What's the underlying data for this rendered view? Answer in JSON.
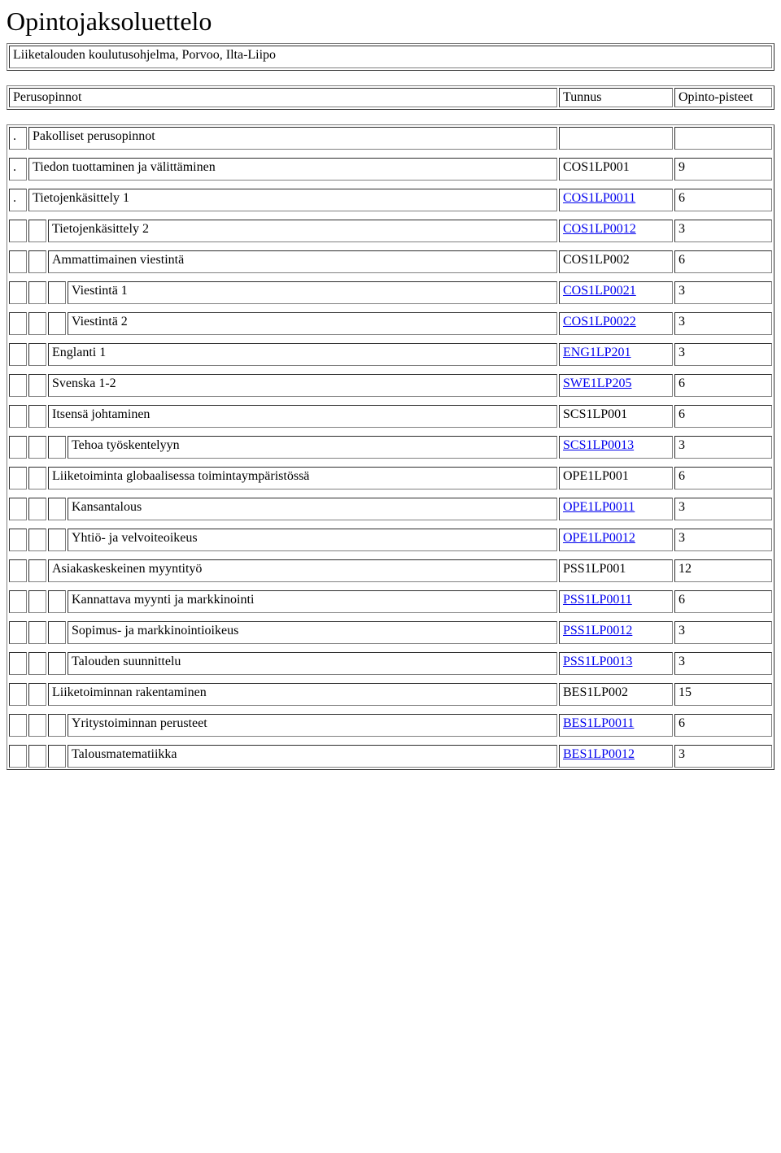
{
  "page": {
    "title": "Opintojaksoluettelo",
    "subtitle": "Liiketalouden koulutusohjelma, Porvoo, Ilta-Liipo"
  },
  "header": {
    "col1": "Perusopinnot",
    "col2": "Tunnus",
    "col3": "Opinto-pisteet"
  },
  "rows": [
    {
      "indent": 0,
      "label": "Pakolliset perusopinnot",
      "dot": ".",
      "code": "",
      "pts": "",
      "link": false
    },
    {
      "indent": 0,
      "label": "Tiedon tuottaminen ja välittäminen",
      "dot": ".",
      "code": "COS1LP001",
      "pts": "9",
      "link": false
    },
    {
      "indent": 0,
      "label": "Tietojenkäsittely 1",
      "dot": ".",
      "code": "COS1LP0011",
      "pts": "6",
      "link": true
    },
    {
      "indent": 1,
      "label": "Tietojenkäsittely 2",
      "dot": "",
      "code": "COS1LP0012",
      "pts": "3",
      "link": true
    },
    {
      "indent": 1,
      "label": "Ammattimainen viestintä",
      "dot": "",
      "code": "COS1LP002",
      "pts": "6",
      "link": false
    },
    {
      "indent": 2,
      "label": "Viestintä 1",
      "dot": "",
      "code": "COS1LP0021",
      "pts": "3",
      "link": true
    },
    {
      "indent": 2,
      "label": "Viestintä 2",
      "dot": "",
      "code": "COS1LP0022",
      "pts": "3",
      "link": true
    },
    {
      "indent": 1,
      "label": "Englanti 1",
      "dot": "",
      "code": "ENG1LP201",
      "pts": "3",
      "link": true
    },
    {
      "indent": 1,
      "label": "Svenska 1-2",
      "dot": "",
      "code": "SWE1LP205",
      "pts": "6",
      "link": true
    },
    {
      "indent": 1,
      "label": "Itsensä johtaminen",
      "dot": "",
      "code": "SCS1LP001",
      "pts": "6",
      "link": false
    },
    {
      "indent": 2,
      "label": "Tehoa työskentelyyn",
      "dot": "",
      "code": "SCS1LP0013",
      "pts": "3",
      "link": true
    },
    {
      "indent": 1,
      "label": "Liiketoiminta globaalisessa toimintaympäristössä",
      "dot": "",
      "code": "OPE1LP001",
      "pts": "6",
      "link": false
    },
    {
      "indent": 2,
      "label": "Kansantalous",
      "dot": "",
      "code": "OPE1LP0011",
      "pts": "3",
      "link": true
    },
    {
      "indent": 2,
      "label": "Yhtiö- ja velvoiteoikeus",
      "dot": "",
      "code": "OPE1LP0012",
      "pts": "3",
      "link": true
    },
    {
      "indent": 1,
      "label": "Asiakaskeskeinen myyntityö",
      "dot": "",
      "code": "PSS1LP001",
      "pts": "12",
      "link": false
    },
    {
      "indent": 2,
      "label": "Kannattava myynti ja markkinointi",
      "dot": "",
      "code": "PSS1LP0011",
      "pts": "6",
      "link": true
    },
    {
      "indent": 2,
      "label": "Sopimus- ja markkinointioikeus",
      "dot": "",
      "code": "PSS1LP0012",
      "pts": "3",
      "link": true
    },
    {
      "indent": 2,
      "label": "Talouden suunnittelu",
      "dot": "",
      "code": "PSS1LP0013",
      "pts": "3",
      "link": true
    },
    {
      "indent": 1,
      "label": "Liiketoiminnan rakentaminen",
      "dot": "",
      "code": "BES1LP002",
      "pts": "15",
      "link": false
    },
    {
      "indent": 2,
      "label": "Yritystoiminnan perusteet",
      "dot": "",
      "code": "BES1LP0011",
      "pts": "6",
      "link": true
    },
    {
      "indent": 2,
      "label": "Talousmatematiikka",
      "dot": "",
      "code": "BES1LP0012",
      "pts": "3",
      "link": true
    }
  ]
}
